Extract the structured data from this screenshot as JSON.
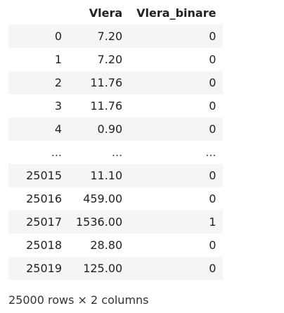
{
  "columns": [
    "",
    "Vlera",
    "Vlera_binare"
  ],
  "rows": [
    {
      "index": "0",
      "vlera": "7.20",
      "binare": "0"
    },
    {
      "index": "1",
      "vlera": "7.20",
      "binare": "0"
    },
    {
      "index": "2",
      "vlera": "11.76",
      "binare": "0"
    },
    {
      "index": "3",
      "vlera": "11.76",
      "binare": "0"
    },
    {
      "index": "4",
      "vlera": "0.90",
      "binare": "0"
    },
    {
      "index": "...",
      "vlera": "...",
      "binare": "..."
    },
    {
      "index": "25015",
      "vlera": "11.10",
      "binare": "0"
    },
    {
      "index": "25016",
      "vlera": "459.00",
      "binare": "0"
    },
    {
      "index": "25017",
      "vlera": "1536.00",
      "binare": "1"
    },
    {
      "index": "25018",
      "vlera": "28.80",
      "binare": "0"
    },
    {
      "index": "25019",
      "vlera": "125.00",
      "binare": "0"
    }
  ],
  "shape_text": "25000 rows × 2 columns"
}
